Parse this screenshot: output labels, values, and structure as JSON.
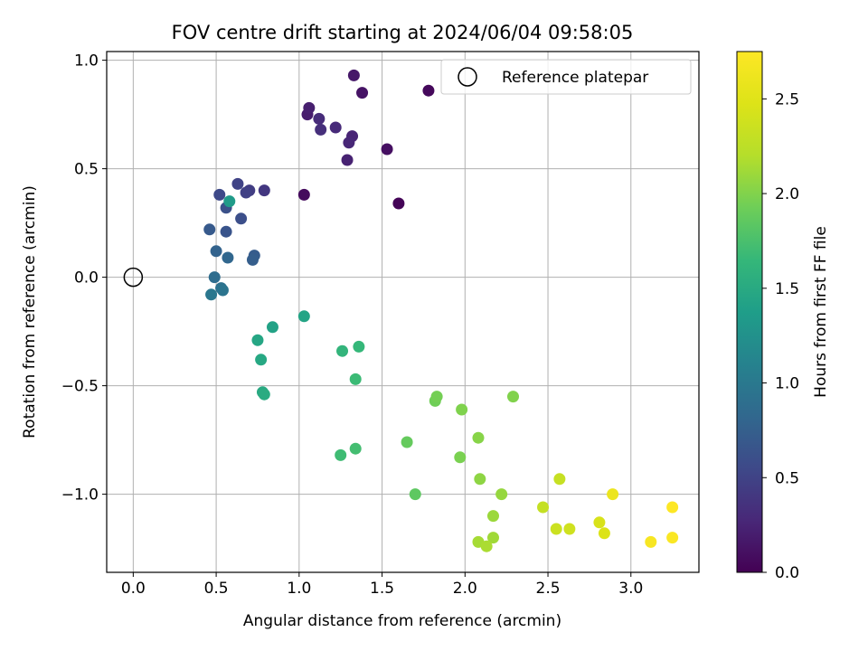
{
  "chart_data": {
    "type": "scatter",
    "title": "FOV centre drift starting at 2024/06/04 09:58:05",
    "xlabel": "Angular distance from reference (arcmin)",
    "ylabel": "Rotation from reference (arcmin)",
    "colorbar_label": "Hours from first FF file",
    "colormap": "viridis",
    "xlim": [
      -0.16,
      3.41
    ],
    "ylim": [
      -1.36,
      1.04
    ],
    "clim": [
      0.0,
      2.75
    ],
    "xticks": [
      0.0,
      0.5,
      1.0,
      1.5,
      2.0,
      2.5,
      3.0
    ],
    "xtick_labels": [
      "0.0",
      "0.5",
      "1.0",
      "1.5",
      "2.0",
      "2.5",
      "3.0"
    ],
    "yticks": [
      -1.0,
      -0.5,
      0.0,
      0.5,
      1.0
    ],
    "ytick_labels": [
      "−1.0",
      "−0.5",
      "0.0",
      "0.5",
      "1.0"
    ],
    "cticks": [
      0.0,
      0.5,
      1.0,
      1.5,
      2.0,
      2.5
    ],
    "ctick_labels": [
      "0.0",
      "0.5",
      "1.0",
      "1.5",
      "2.0",
      "2.5"
    ],
    "grid": true,
    "legend": {
      "position": "top-right",
      "label": "Reference platepar"
    },
    "reference_point": {
      "x": 0.0,
      "y": 0.0
    },
    "points": [
      {
        "x": 1.6,
        "y": 0.34,
        "t": 0.02
      },
      {
        "x": 1.78,
        "y": 0.86,
        "t": 0.05
      },
      {
        "x": 1.03,
        "y": 0.38,
        "t": 0.07
      },
      {
        "x": 1.53,
        "y": 0.59,
        "t": 0.1
      },
      {
        "x": 1.38,
        "y": 0.85,
        "t": 0.13
      },
      {
        "x": 1.33,
        "y": 0.93,
        "t": 0.16
      },
      {
        "x": 1.05,
        "y": 0.75,
        "t": 0.19
      },
      {
        "x": 1.06,
        "y": 0.78,
        "t": 0.21
      },
      {
        "x": 1.29,
        "y": 0.54,
        "t": 0.23
      },
      {
        "x": 1.32,
        "y": 0.65,
        "t": 0.25
      },
      {
        "x": 1.3,
        "y": 0.62,
        "t": 0.27
      },
      {
        "x": 1.22,
        "y": 0.69,
        "t": 0.29
      },
      {
        "x": 1.12,
        "y": 0.73,
        "t": 0.31
      },
      {
        "x": 1.13,
        "y": 0.68,
        "t": 0.33
      },
      {
        "x": 0.79,
        "y": 0.4,
        "t": 0.4
      },
      {
        "x": 0.7,
        "y": 0.4,
        "t": 0.45
      },
      {
        "x": 0.68,
        "y": 0.39,
        "t": 0.48
      },
      {
        "x": 0.63,
        "y": 0.43,
        "t": 0.5
      },
      {
        "x": 0.52,
        "y": 0.38,
        "t": 0.55
      },
      {
        "x": 0.65,
        "y": 0.27,
        "t": 0.6
      },
      {
        "x": 0.56,
        "y": 0.32,
        "t": 0.62
      },
      {
        "x": 0.56,
        "y": 0.21,
        "t": 0.65
      },
      {
        "x": 0.46,
        "y": 0.22,
        "t": 0.7
      },
      {
        "x": 0.73,
        "y": 0.1,
        "t": 0.72
      },
      {
        "x": 0.72,
        "y": 0.08,
        "t": 0.74
      },
      {
        "x": 0.5,
        "y": 0.12,
        "t": 0.78
      },
      {
        "x": 0.57,
        "y": 0.09,
        "t": 0.82
      },
      {
        "x": 0.49,
        "y": 0.0,
        "t": 0.88
      },
      {
        "x": 0.53,
        "y": -0.05,
        "t": 0.92
      },
      {
        "x": 0.54,
        "y": -0.06,
        "t": 0.95
      },
      {
        "x": 0.47,
        "y": -0.08,
        "t": 0.98
      },
      {
        "x": 0.58,
        "y": 0.35,
        "t": 1.35
      },
      {
        "x": 0.84,
        "y": -0.23,
        "t": 1.42
      },
      {
        "x": 1.03,
        "y": -0.18,
        "t": 1.44
      },
      {
        "x": 0.75,
        "y": -0.29,
        "t": 1.46
      },
      {
        "x": 0.77,
        "y": -0.38,
        "t": 1.48
      },
      {
        "x": 0.78,
        "y": -0.53,
        "t": 1.5
      },
      {
        "x": 0.79,
        "y": -0.54,
        "t": 1.52
      },
      {
        "x": 1.26,
        "y": -0.34,
        "t": 1.62
      },
      {
        "x": 1.36,
        "y": -0.32,
        "t": 1.65
      },
      {
        "x": 1.34,
        "y": -0.47,
        "t": 1.68
      },
      {
        "x": 1.25,
        "y": -0.82,
        "t": 1.7
      },
      {
        "x": 1.34,
        "y": -0.79,
        "t": 1.72
      },
      {
        "x": 1.7,
        "y": -1.0,
        "t": 1.85
      },
      {
        "x": 1.65,
        "y": -0.76,
        "t": 1.88
      },
      {
        "x": 1.82,
        "y": -0.57,
        "t": 1.93
      },
      {
        "x": 1.83,
        "y": -0.55,
        "t": 1.95
      },
      {
        "x": 1.97,
        "y": -0.83,
        "t": 1.97
      },
      {
        "x": 1.98,
        "y": -0.61,
        "t": 1.99
      },
      {
        "x": 2.29,
        "y": -0.55,
        "t": 2.0
      },
      {
        "x": 2.08,
        "y": -0.74,
        "t": 2.02
      },
      {
        "x": 2.09,
        "y": -0.93,
        "t": 2.05
      },
      {
        "x": 2.22,
        "y": -1.0,
        "t": 2.08
      },
      {
        "x": 2.17,
        "y": -1.1,
        "t": 2.1
      },
      {
        "x": 2.17,
        "y": -1.2,
        "t": 2.12
      },
      {
        "x": 2.08,
        "y": -1.22,
        "t": 2.14
      },
      {
        "x": 2.13,
        "y": -1.24,
        "t": 2.16
      },
      {
        "x": 2.47,
        "y": -1.06,
        "t": 2.3
      },
      {
        "x": 2.57,
        "y": -0.93,
        "t": 2.32
      },
      {
        "x": 2.55,
        "y": -1.16,
        "t": 2.35
      },
      {
        "x": 2.63,
        "y": -1.16,
        "t": 2.38
      },
      {
        "x": 2.81,
        "y": -1.13,
        "t": 2.44
      },
      {
        "x": 2.84,
        "y": -1.18,
        "t": 2.47
      },
      {
        "x": 2.89,
        "y": -1.0,
        "t": 2.6
      },
      {
        "x": 3.12,
        "y": -1.22,
        "t": 2.7
      },
      {
        "x": 3.25,
        "y": -1.2,
        "t": 2.72
      },
      {
        "x": 3.25,
        "y": -1.06,
        "t": 2.75
      }
    ]
  }
}
